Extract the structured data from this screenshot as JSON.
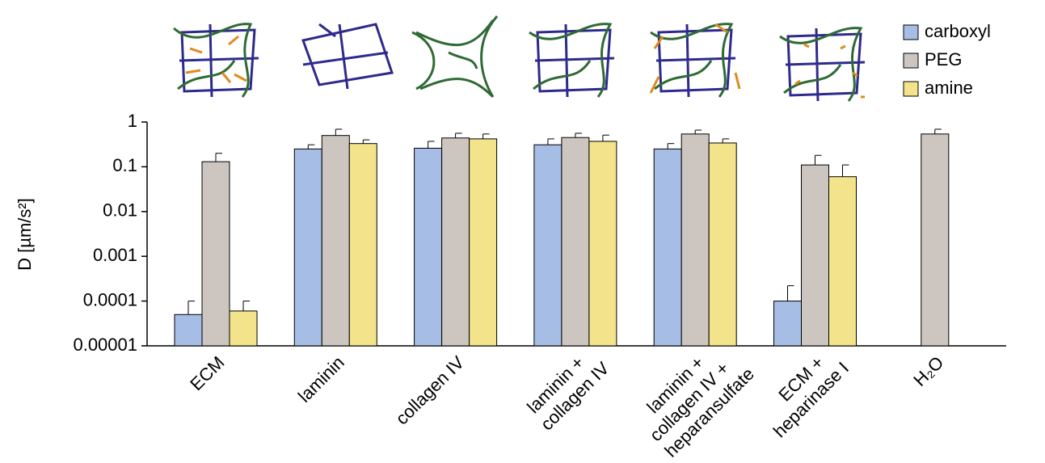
{
  "chart_data": {
    "type": "bar",
    "y_label": "D [µm/s²]",
    "categories": [
      "ECM",
      "laminin",
      "collagen IV",
      "laminin +\ncollagen IV",
      "laminin +\ncollagen IV +\nheparansulfate",
      "ECM +\nheparinase I",
      "H₂O"
    ],
    "series": [
      {
        "name": "carboxyl",
        "color": "#a6bde6",
        "values": [
          5e-05,
          0.25,
          0.26,
          0.31,
          0.25,
          0.0001,
          null
        ],
        "errors": [
          5e-05,
          0.06,
          0.11,
          0.11,
          0.08,
          0.00012,
          null
        ]
      },
      {
        "name": "PEG",
        "color": "#cdc6c0",
        "values": [
          0.13,
          0.5,
          0.44,
          0.45,
          0.54,
          0.11,
          0.54
        ],
        "errors": [
          0.07,
          0.19,
          0.12,
          0.11,
          0.12,
          0.07,
          0.15
        ]
      },
      {
        "name": "amine",
        "color": "#f3e38a",
        "values": [
          6e-05,
          0.33,
          0.42,
          0.37,
          0.34,
          0.06,
          null
        ],
        "errors": [
          4e-05,
          0.07,
          0.12,
          0.14,
          0.08,
          0.05,
          null
        ]
      }
    ],
    "ylim": [
      1e-05,
      1
    ],
    "yticks": [
      1,
      0.1,
      0.01,
      0.001,
      0.0001,
      1e-05
    ],
    "ylog": true,
    "legend": "top-right"
  }
}
